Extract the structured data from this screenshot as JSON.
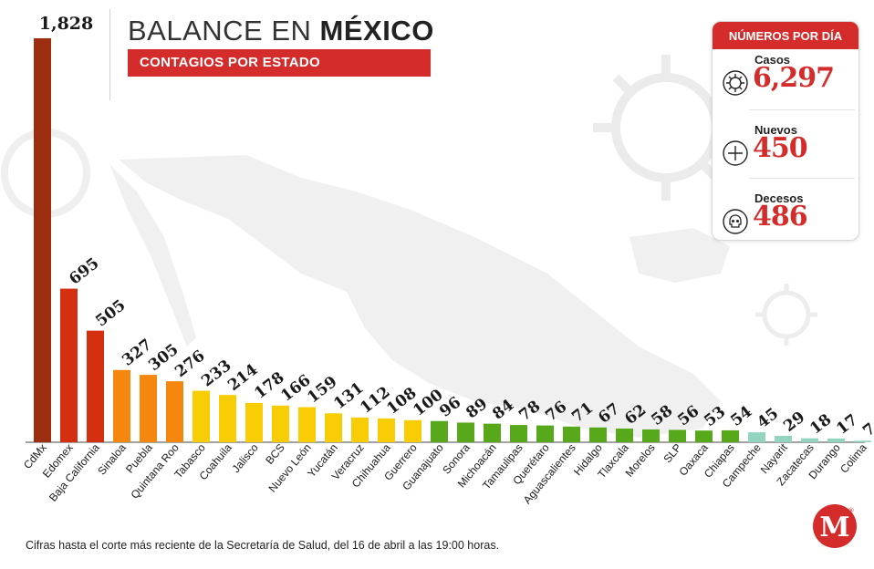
{
  "title": {
    "light": "BALANCE EN ",
    "bold": "MÉXICO"
  },
  "subtitle": "CONTAGIOS POR ESTADO",
  "stats": {
    "header": "NÚMEROS POR DÍA",
    "items": [
      {
        "label": "Casos",
        "value": "6,297",
        "icon": "virus-icon"
      },
      {
        "label": "Nuevos",
        "value": "450",
        "icon": "plus-circle-icon"
      },
      {
        "label": "Decesos",
        "value": "486",
        "icon": "skull-icon"
      }
    ]
  },
  "footnote": "Cifras hasta el corte más reciente de la Secretaría de Salud, del 16 de abril a las 19:00 horas.",
  "logo": {
    "letter": "M",
    "mark": "®"
  },
  "colors": {
    "accent": "#d42b2b",
    "tiers": [
      "#9c2e0f",
      "#d4300f",
      "#f5870e",
      "#f9cd05",
      "#58a81c",
      "#93d4c0"
    ]
  },
  "chart_data": {
    "type": "bar",
    "title": "CONTAGIOS POR ESTADO",
    "categories": [
      "CdMx",
      "Edomex",
      "Baja California",
      "Sinaloa",
      "Puebla",
      "Quintana Roo",
      "Tabasco",
      "Coahuila",
      "Jalisco",
      "BCS",
      "Nuevo León",
      "Yucatán",
      "Veracruz",
      "Chihuahua",
      "Guerrero",
      "Guanajuato",
      "Sonora",
      "Michoacán",
      "Tamaulipas",
      "Querétaro",
      "Aguascalientes",
      "Hidalgo",
      "Tlaxcala",
      "Morelos",
      "SLP",
      "Oaxaca",
      "Chiapas",
      "Campeche",
      "Nayarit",
      "Zacatecas",
      "Durango",
      "Colima"
    ],
    "values": [
      1828,
      695,
      505,
      327,
      305,
      276,
      233,
      214,
      178,
      166,
      159,
      131,
      112,
      108,
      100,
      96,
      89,
      84,
      78,
      76,
      71,
      67,
      62,
      58,
      56,
      53,
      54,
      45,
      29,
      18,
      17,
      7
    ],
    "value_labels": [
      "1,828",
      "695",
      "505",
      "327",
      "305",
      "276",
      "233",
      "214",
      "178",
      "166",
      "159",
      "131",
      "112",
      "108",
      "100",
      "96",
      "89",
      "84",
      "78",
      "76",
      "71",
      "67",
      "62",
      "58",
      "56",
      "53",
      "54",
      "45",
      "29",
      "18",
      "17",
      "7"
    ],
    "color_tiers": [
      0,
      1,
      1,
      2,
      2,
      2,
      3,
      3,
      3,
      3,
      3,
      3,
      3,
      3,
      3,
      4,
      4,
      4,
      4,
      4,
      4,
      4,
      4,
      4,
      4,
      4,
      4,
      5,
      5,
      5,
      5,
      5
    ],
    "xlabel": "",
    "ylabel": "",
    "ylim": [
      0,
      1828
    ],
    "grid": false,
    "legend": "none"
  }
}
